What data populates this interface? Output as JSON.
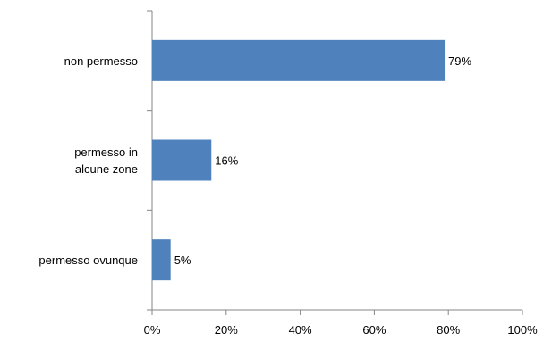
{
  "chart_data": {
    "type": "bar",
    "orientation": "horizontal",
    "categories": [
      [
        "non permesso"
      ],
      [
        "permesso in",
        "alcune zone"
      ],
      [
        "permesso ovunque"
      ]
    ],
    "values": [
      79,
      16,
      5
    ],
    "data_labels": [
      "79%",
      "16%",
      "5%"
    ],
    "x_ticks": [
      0,
      20,
      40,
      60,
      80,
      100
    ],
    "x_tick_labels": [
      "0%",
      "20%",
      "40%",
      "60%",
      "80%",
      "100%"
    ],
    "xlim": [
      0,
      100
    ],
    "title": "",
    "xlabel": "",
    "ylabel": "",
    "grid": false,
    "legend": "none",
    "bar_color": "#4F81BD",
    "axis_color": "#868686"
  }
}
